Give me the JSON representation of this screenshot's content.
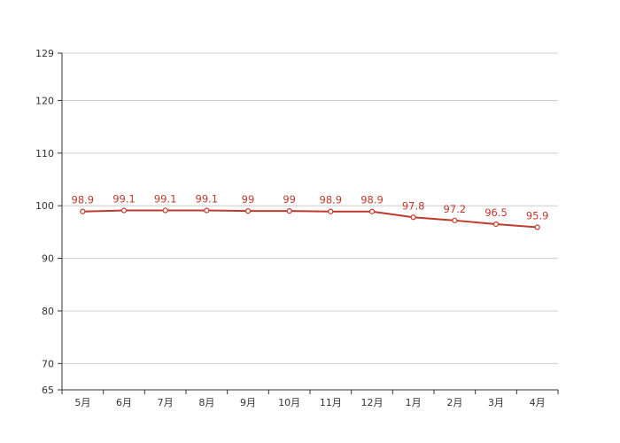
{
  "chart_data": {
    "type": "line",
    "title": "",
    "xlabel": "",
    "ylabel": "",
    "categories": [
      "5月",
      "6月",
      "7月",
      "8月",
      "9月",
      "10月",
      "11月",
      "12月",
      "1月",
      "2月",
      "3月",
      "4月"
    ],
    "series": [
      {
        "values": [
          98.9,
          99.1,
          99.1,
          99.1,
          99,
          99,
          98.9,
          98.9,
          97.8,
          97.2,
          96.5,
          95.9
        ],
        "labels": [
          "98.9",
          "99.1",
          "99.1",
          "99.1",
          "99",
          "99",
          "98.9",
          "98.9",
          "97.8",
          "97.2",
          "96.5",
          "95.9"
        ],
        "color": "#c0392b"
      }
    ],
    "ylim": [
      65,
      129
    ],
    "yticks": [
      65,
      70,
      80,
      90,
      100,
      110,
      120,
      129
    ],
    "ytick_labels": [
      "65",
      "70",
      "80",
      "90",
      "100",
      "110",
      "120",
      "129"
    ],
    "grid": true,
    "legend": "none",
    "colors": {
      "line": "#c0392b",
      "grid": "#cccccc",
      "axis": "#333333",
      "text": "#333333"
    }
  }
}
